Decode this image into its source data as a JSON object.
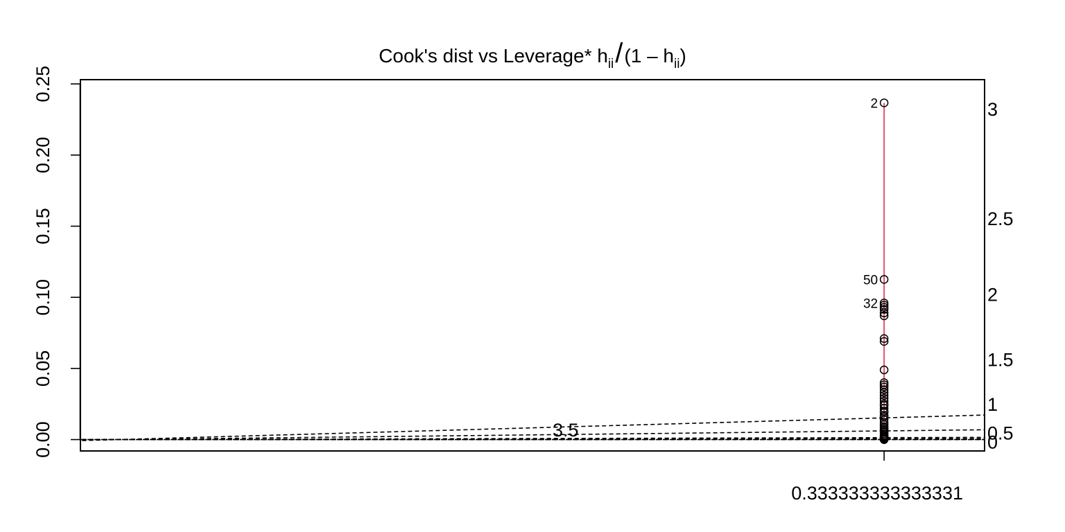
{
  "chart_data": {
    "type": "scatter",
    "title": {
      "main": "Cook's dist vs Leverage* h",
      "sub1": "ii",
      "slash": "/",
      "open": "(1 – h",
      "sub2": "ii",
      "close": ")"
    },
    "xlabel": "",
    "ylabel": "",
    "xlim": [
      0.28,
      0.34
    ],
    "ylim": [
      -0.008,
      0.253
    ],
    "x_tick_labels": [
      {
        "value": 0.333333333333331,
        "label": "0.333333333333331"
      }
    ],
    "y_ticks": [
      {
        "value": 0.0,
        "label": "0.00"
      },
      {
        "value": 0.05,
        "label": "0.05"
      },
      {
        "value": 0.1,
        "label": "0.10"
      },
      {
        "value": 0.15,
        "label": "0.15"
      },
      {
        "value": 0.2,
        "label": "0.20"
      },
      {
        "value": 0.25,
        "label": "0.25"
      }
    ],
    "contour_origin": [
      0.2825,
      0.0
    ],
    "contours": [
      {
        "slope": 0.3,
        "label": ""
      },
      {
        "slope": 0.12,
        "label": ""
      },
      {
        "slope": 0.027,
        "label": ""
      },
      {
        "slope": 0.011,
        "label": ""
      },
      {
        "slope": 0.0056,
        "label": "3.5"
      },
      {
        "slope": 0.0025,
        "label": ""
      },
      {
        "slope": 0.00085,
        "label": ""
      }
    ],
    "right_axis_labels": [
      {
        "value": 0.2325,
        "label": "3"
      },
      {
        "value": 0.1555,
        "label": "2.5"
      },
      {
        "value": 0.1023,
        "label": "2"
      },
      {
        "value": 0.0565,
        "label": "1.5"
      },
      {
        "value": 0.025,
        "label": "1"
      },
      {
        "value": 0.005,
        "label": "0.5"
      },
      {
        "value": -0.0015,
        "label": "0"
      }
    ],
    "points": {
      "x": 0.333333333333331,
      "y": [
        0.2367,
        0.1126,
        0.096,
        0.0945,
        0.093,
        0.0915,
        0.089,
        0.087,
        0.071,
        0.069,
        0.049,
        0.04,
        0.0385,
        0.037,
        0.035,
        0.033,
        0.031,
        0.029,
        0.027,
        0.025,
        0.024,
        0.022,
        0.02,
        0.019,
        0.017,
        0.016,
        0.014,
        0.012,
        0.0105,
        0.009,
        0.008,
        0.007,
        0.006,
        0.005,
        0.004,
        0.003,
        0.0025,
        0.002,
        0.0015,
        0.0012,
        0.001,
        0.0008,
        0.0006,
        0.0005,
        0.0004,
        0.0003,
        0.0002,
        0.0001,
        0.0,
        0.0
      ]
    },
    "point_labels": [
      {
        "label": "2",
        "y": 0.2367
      },
      {
        "label": "50",
        "y": 0.1126
      },
      {
        "label": "32",
        "y": 0.096
      }
    ],
    "smoother": {
      "color": "#DF536B",
      "y_top": 0.2367,
      "y_bottom": 0.0
    },
    "reference_line_y": 0.0,
    "grid": false,
    "legend": "none"
  }
}
